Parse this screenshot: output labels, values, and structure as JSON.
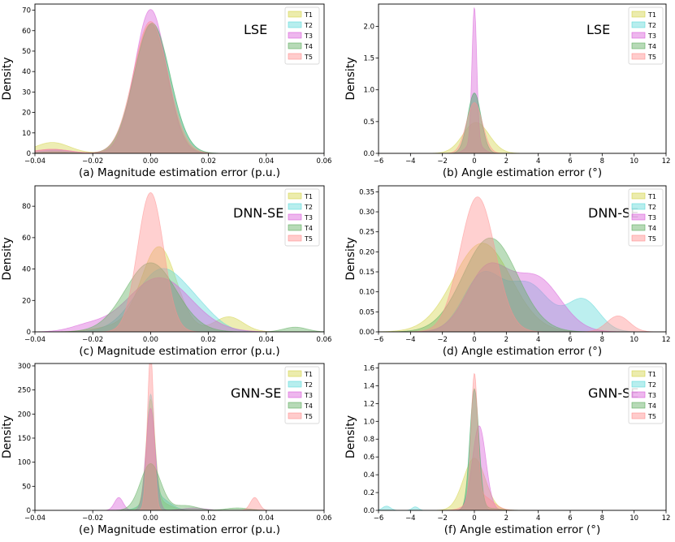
{
  "series_colors": [
    "#d4d44a",
    "#5fd9d9",
    "#d95fd9",
    "#5fae5f",
    "#ff8f8f"
  ],
  "series_colors_hex_note": "",
  "chart_data": [
    {
      "type": "area",
      "method_label": "LSE",
      "xlabel": "(a) Magnitude estimation error (p.u.)",
      "ylabel": "Density",
      "xlim": [
        -0.04,
        0.06
      ],
      "ylim": [
        0,
        73
      ],
      "xticks": [
        -0.04,
        -0.02,
        0.0,
        0.02,
        0.04,
        0.06
      ],
      "xtick_labels": [
        "−0.04",
        "−0.02",
        "0.00",
        "0.02",
        "0.04",
        "0.06"
      ],
      "yticks": [
        0,
        10,
        20,
        30,
        40,
        50,
        60,
        70
      ],
      "ytick_labels": [
        "0",
        "10",
        "20",
        "30",
        "40",
        "50",
        "60",
        "70"
      ],
      "legend": [
        "T1",
        "T2",
        "T3",
        "T4",
        "T5"
      ],
      "legend_position": "top-right",
      "series": [
        {
          "name": "T1",
          "components": [
            [
              0.92,
              0.0,
              0.0058
            ],
            [
              0.08,
              -0.034,
              0.006
            ]
          ]
        },
        {
          "name": "T2",
          "components": [
            [
              0.98,
              0.0005,
              0.0062
            ],
            [
              0.02,
              -0.033,
              0.005
            ]
          ]
        },
        {
          "name": "T3",
          "components": [
            [
              0.97,
              0.0,
              0.0055
            ],
            [
              0.03,
              -0.034,
              0.006
            ]
          ]
        },
        {
          "name": "T4",
          "components": [
            [
              0.99,
              0.0005,
              0.0062
            ],
            [
              0.01,
              -0.033,
              0.005
            ]
          ]
        },
        {
          "name": "T5",
          "components": [
            [
              0.97,
              0.0,
              0.006
            ],
            [
              0.03,
              -0.034,
              0.006
            ]
          ]
        }
      ]
    },
    {
      "type": "area",
      "method_label": "LSE",
      "xlabel": "(b) Angle estimation error (°)",
      "ylabel": "Density",
      "xlim": [
        -6,
        12
      ],
      "ylim": [
        0,
        2.35
      ],
      "xticks": [
        -6,
        -4,
        -2,
        0,
        2,
        4,
        6,
        8,
        10,
        12
      ],
      "xtick_labels": [
        "−6",
        "−4",
        "−2",
        "0",
        "2",
        "4",
        "6",
        "8",
        "10",
        "12"
      ],
      "yticks": [
        0,
        0.5,
        1.0,
        1.5,
        2.0
      ],
      "ytick_labels": [
        "0.0",
        "0.5",
        "1.0",
        "1.5",
        "2.0"
      ],
      "legend": [
        "T1",
        "T2",
        "T3",
        "T4",
        "T5"
      ],
      "legend_position": "top-right",
      "series": [
        {
          "name": "T1",
          "components": [
            [
              1.0,
              0.1,
              0.82
            ]
          ]
        },
        {
          "name": "T2",
          "components": [
            [
              1.0,
              0.0,
              0.42
            ]
          ]
        },
        {
          "name": "T3",
          "components": [
            [
              0.8,
              0.0,
              0.15
            ],
            [
              0.2,
              0.0,
              0.45
            ]
          ]
        },
        {
          "name": "T4",
          "components": [
            [
              1.0,
              0.0,
              0.42
            ]
          ]
        },
        {
          "name": "T5",
          "components": [
            [
              1.0,
              0.0,
              0.5
            ]
          ]
        }
      ]
    },
    {
      "type": "area",
      "method_label": "DNN-SE",
      "xlabel": "(c) Magnitude estimation error (p.u.)",
      "ylabel": "Density",
      "xlim": [
        -0.04,
        0.06
      ],
      "ylim": [
        0,
        93
      ],
      "xticks": [
        -0.04,
        -0.02,
        0.0,
        0.02,
        0.04,
        0.06
      ],
      "xtick_labels": [
        "−0.04",
        "−0.02",
        "0.00",
        "0.02",
        "0.04",
        "0.06"
      ],
      "yticks": [
        0,
        20,
        40,
        60,
        80
      ],
      "ytick_labels": [
        "0",
        "20",
        "40",
        "60",
        "80"
      ],
      "legend": [
        "T1",
        "T2",
        "T3",
        "T4",
        "T5"
      ],
      "legend_position": "top-right",
      "series": [
        {
          "name": "T1",
          "components": [
            [
              0.8,
              0.003,
              0.006
            ],
            [
              0.12,
              0.027,
              0.005
            ],
            [
              0.08,
              -0.01,
              0.008
            ]
          ]
        },
        {
          "name": "T2",
          "components": [
            [
              0.9,
              0.004,
              0.009
            ],
            [
              0.1,
              0.018,
              0.006
            ]
          ]
        },
        {
          "name": "T3",
          "components": [
            [
              0.95,
              0.003,
              0.011
            ],
            [
              0.05,
              -0.022,
              0.006
            ]
          ]
        },
        {
          "name": "T4",
          "components": [
            [
              0.97,
              0.0,
              0.0088
            ],
            [
              0.03,
              0.05,
              0.004
            ]
          ]
        },
        {
          "name": "T5",
          "components": [
            [
              1.0,
              0.0,
              0.0045
            ]
          ]
        }
      ]
    },
    {
      "type": "area",
      "method_label": "DNN-SE",
      "xlabel": "(d) Angle estimation error (°)",
      "ylabel": "Density",
      "xlim": [
        -6,
        12
      ],
      "ylim": [
        0,
        0.365
      ],
      "xticks": [
        -6,
        -4,
        -2,
        0,
        2,
        4,
        6,
        8,
        10,
        12
      ],
      "xtick_labels": [
        "−6",
        "−4",
        "−2",
        "0",
        "2",
        "4",
        "6",
        "8",
        "10",
        "12"
      ],
      "yticks": [
        0,
        0.05,
        0.1,
        0.15,
        0.2,
        0.25,
        0.3,
        0.35
      ],
      "ytick_labels": [
        "0.00",
        "0.05",
        "0.10",
        "0.15",
        "0.20",
        "0.25",
        "0.30",
        "0.35"
      ],
      "legend": [
        "T1",
        "T2",
        "T3",
        "T4",
        "T5"
      ],
      "legend_position": "top-right",
      "series": [
        {
          "name": "T1",
          "components": [
            [
              1.0,
              0.5,
              1.8
            ]
          ]
        },
        {
          "name": "T2",
          "components": [
            [
              0.42,
              0.5,
              1.2
            ],
            [
              0.38,
              3.4,
              1.3
            ],
            [
              0.2,
              6.8,
              1.0
            ]
          ]
        },
        {
          "name": "T3",
          "components": [
            [
              0.5,
              0.8,
              1.3
            ],
            [
              0.5,
              3.9,
              1.5
            ]
          ]
        },
        {
          "name": "T4",
          "components": [
            [
              1.0,
              1.0,
              1.7
            ]
          ]
        },
        {
          "name": "T5",
          "components": [
            [
              0.93,
              0.2,
              1.1
            ],
            [
              0.07,
              9.0,
              0.7
            ]
          ]
        }
      ]
    },
    {
      "type": "area",
      "method_label": "GNN-SE",
      "xlabel": "(e) Magnitude estimation error (p.u.)",
      "ylabel": "Density",
      "xlim": [
        -0.04,
        0.06
      ],
      "ylim": [
        0,
        305
      ],
      "xticks": [
        -0.04,
        -0.02,
        0.0,
        0.02,
        0.04,
        0.06
      ],
      "xtick_labels": [
        "−0.04",
        "−0.02",
        "0.00",
        "0.02",
        "0.04",
        "0.06"
      ],
      "yticks": [
        0,
        50,
        100,
        150,
        200,
        250,
        300
      ],
      "ytick_labels": [
        "0",
        "50",
        "100",
        "150",
        "200",
        "250",
        "300"
      ],
      "legend": [
        "T1",
        "T2",
        "T3",
        "T4",
        "T5"
      ],
      "legend_position": "top-right",
      "series": [
        {
          "name": "T1",
          "components": [
            [
              0.8,
              0.0,
              0.0015
            ],
            [
              0.2,
              0.002,
              0.004
            ]
          ]
        },
        {
          "name": "T2",
          "components": [
            [
              0.7,
              0.0,
              0.0013
            ],
            [
              0.3,
              0.002,
              0.004
            ]
          ]
        },
        {
          "name": "T3",
          "components": [
            [
              0.85,
              0.0,
              0.0016
            ],
            [
              0.1,
              -0.011,
              0.0015
            ],
            [
              0.05,
              0.015,
              0.004
            ]
          ]
        },
        {
          "name": "T4",
          "components": [
            [
              0.85,
              0.0,
              0.0035
            ],
            [
              0.1,
              0.012,
              0.004
            ],
            [
              0.05,
              0.03,
              0.004
            ]
          ]
        },
        {
          "name": "T5",
          "components": [
            [
              0.9,
              0.0,
              0.0011
            ],
            [
              0.1,
              0.036,
              0.0015
            ]
          ]
        }
      ]
    },
    {
      "type": "area",
      "method_label": "GNN-SE",
      "xlabel": "(f) Angle estimation error (°)",
      "ylabel": "Density",
      "xlim": [
        -6,
        12
      ],
      "ylim": [
        0,
        1.65
      ],
      "xticks": [
        -6,
        -4,
        -2,
        0,
        2,
        4,
        6,
        8,
        10,
        12
      ],
      "xtick_labels": [
        "−6",
        "−4",
        "−2",
        "0",
        "2",
        "4",
        "6",
        "8",
        "10",
        "12"
      ],
      "yticks": [
        0,
        0.2,
        0.4,
        0.6,
        0.8,
        1.0,
        1.2,
        1.4,
        1.6
      ],
      "ytick_labels": [
        "0.0",
        "0.2",
        "0.4",
        "0.6",
        "0.8",
        "1.0",
        "1.2",
        "1.4",
        "1.6"
      ],
      "legend": [
        "T1",
        "T2",
        "T3",
        "T4",
        "T5"
      ],
      "legend_position": "top-right",
      "series": [
        {
          "name": "T1",
          "components": [
            [
              1.0,
              0.0,
              0.68
            ]
          ]
        },
        {
          "name": "T2",
          "components": [
            [
              0.95,
              0.0,
              0.28
            ],
            [
              0.03,
              -5.5,
              0.25
            ],
            [
              0.02,
              -3.7,
              0.2
            ]
          ]
        },
        {
          "name": "T3",
          "components": [
            [
              1.0,
              0.3,
              0.42
            ]
          ]
        },
        {
          "name": "T4",
          "components": [
            [
              0.95,
              0.0,
              0.28
            ],
            [
              0.05,
              0.8,
              0.8
            ]
          ]
        },
        {
          "name": "T5",
          "components": [
            [
              0.7,
              0.0,
              0.2
            ],
            [
              0.3,
              0.4,
              0.7
            ]
          ]
        }
      ]
    }
  ]
}
